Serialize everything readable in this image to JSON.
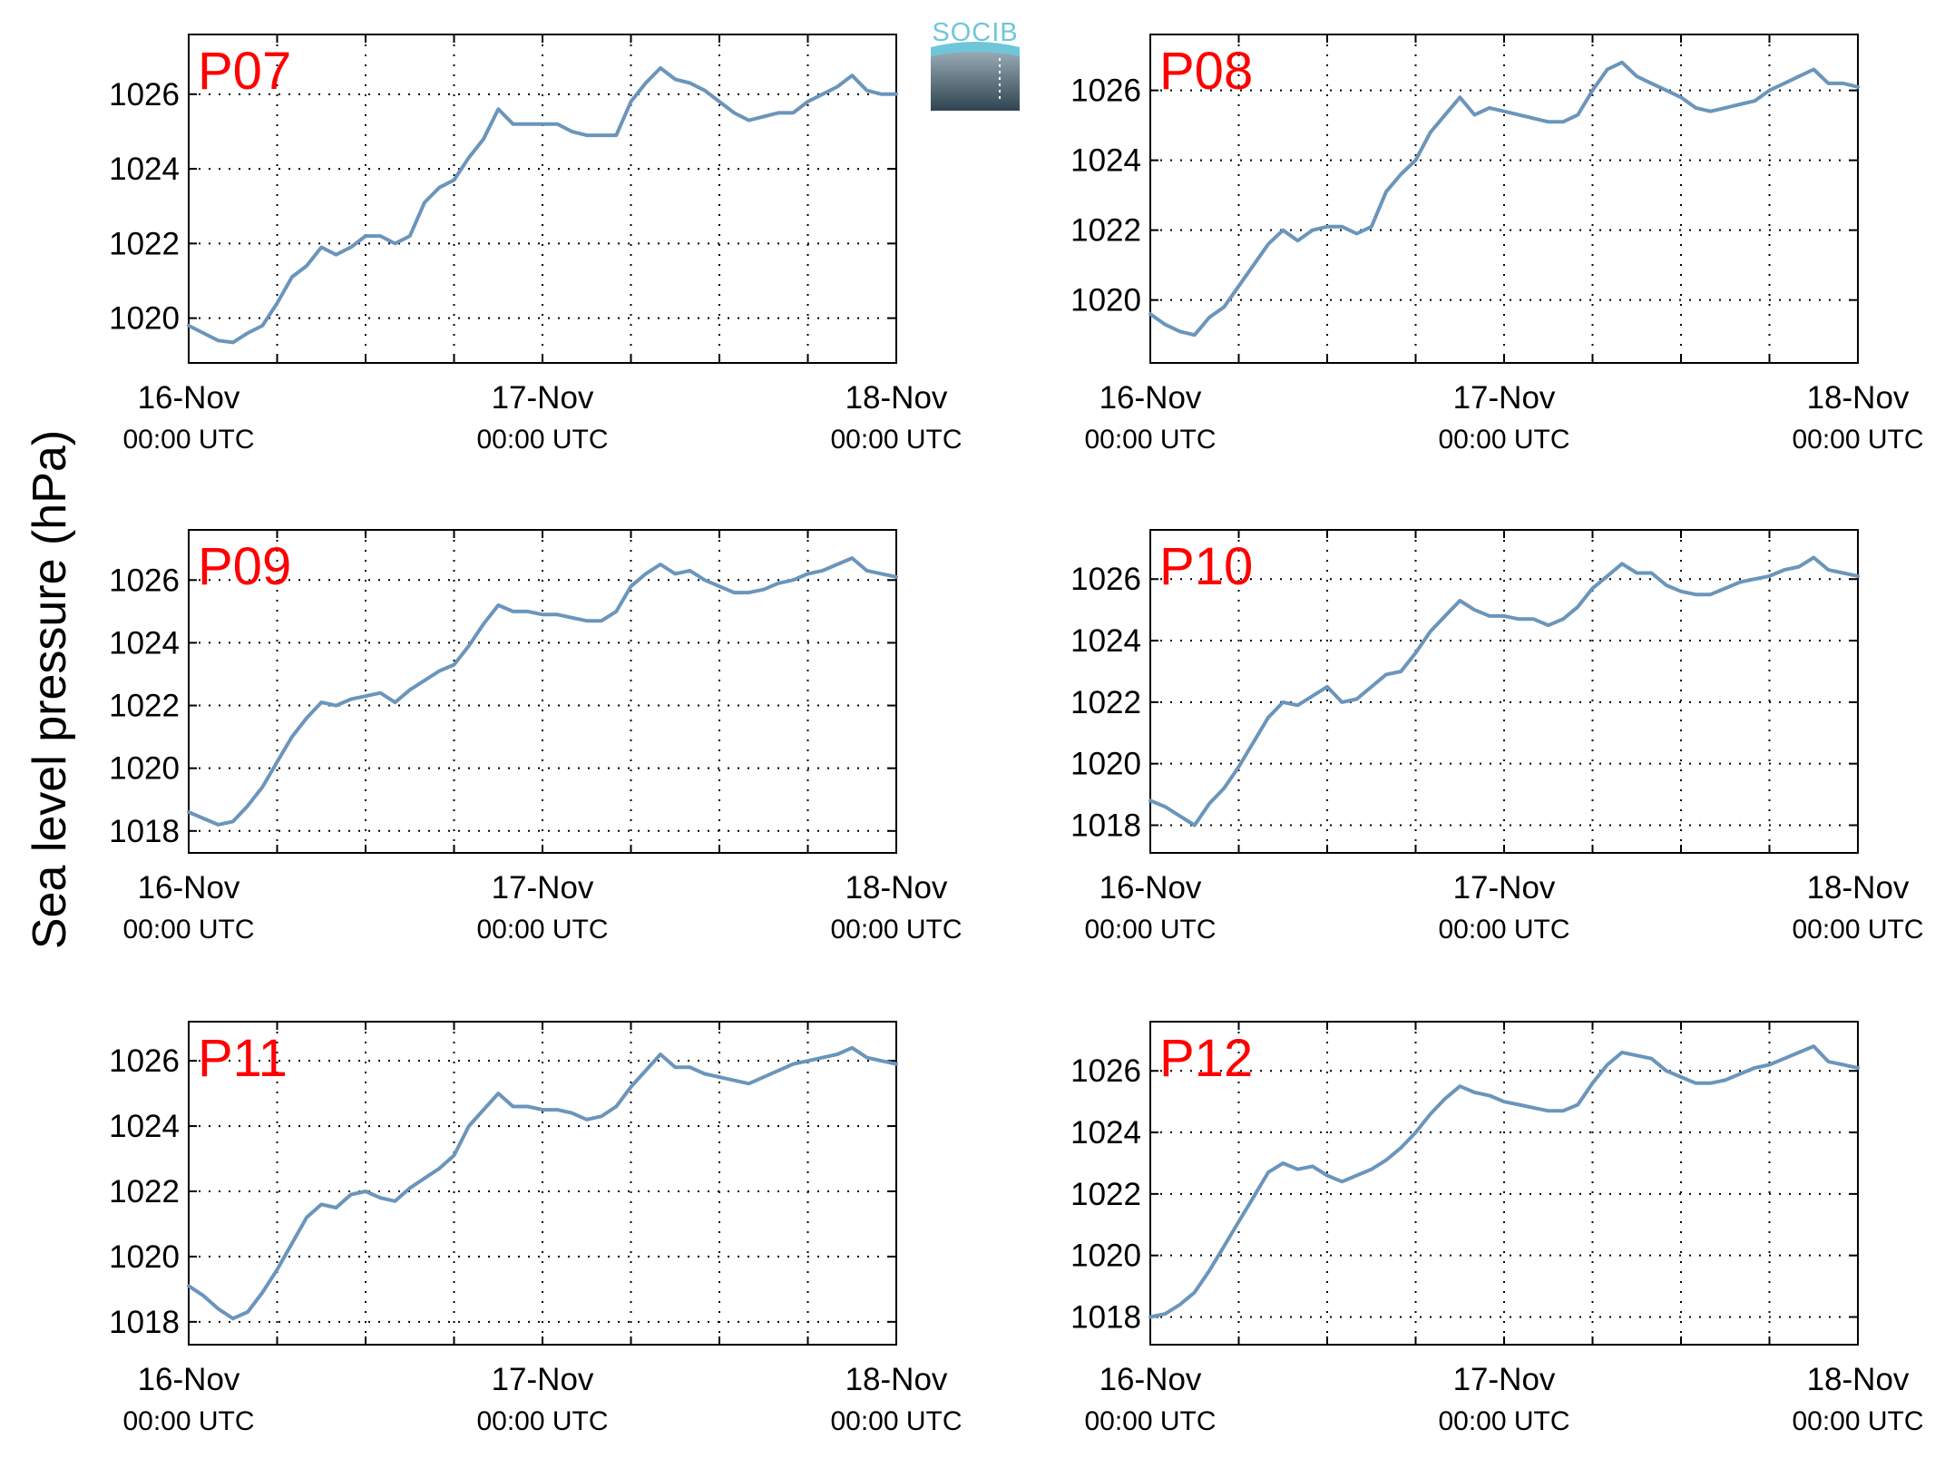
{
  "figure": {
    "ylabel": "Sea level pressure (hPa)",
    "logo_text": "SOCIB",
    "colors": {
      "line": "#6b95bb",
      "title": "#ff0000",
      "axis": "#000000",
      "grid": "#000000",
      "logo_top": "#6fc6d9",
      "logo_bottom": "#2f4450"
    }
  },
  "chart_data": [
    {
      "type": "line",
      "title": "P07",
      "x_ticks": [
        {
          "date": "16-Nov",
          "time": "00:00 UTC"
        },
        {
          "date": "17-Nov",
          "time": "00:00 UTC"
        },
        {
          "date": "18-Nov",
          "time": "00:00 UTC"
        }
      ],
      "x_unit": "hours since 16-Nov 00:00 UTC",
      "xlim": [
        0,
        48
      ],
      "ylim": [
        1018.8,
        1027.6
      ],
      "yticks": [
        1020,
        1022,
        1024,
        1026
      ],
      "grid": true,
      "series": [
        {
          "x": [
            0,
            1,
            2,
            3,
            4,
            5,
            6,
            7,
            8,
            9,
            10,
            11,
            12,
            13,
            14,
            15,
            16,
            17,
            18,
            19,
            20,
            21,
            22,
            23,
            24,
            25,
            26,
            27,
            28,
            29,
            30,
            31,
            32,
            33,
            34,
            35,
            36,
            37,
            38,
            39,
            40,
            41,
            42,
            43,
            44,
            45,
            46,
            47,
            48
          ],
          "y": [
            1019.8,
            1019.6,
            1019.4,
            1019.35,
            1019.6,
            1019.8,
            1020.4,
            1021.1,
            1021.4,
            1021.9,
            1021.7,
            1021.9,
            1022.2,
            1022.2,
            1022.0,
            1022.2,
            1023.1,
            1023.5,
            1023.7,
            1024.3,
            1024.8,
            1025.6,
            1025.2,
            1025.2,
            1025.2,
            1025.2,
            1025.0,
            1024.9,
            1024.9,
            1024.9,
            1025.8,
            1026.3,
            1026.7,
            1026.4,
            1026.3,
            1026.1,
            1025.8,
            1025.5,
            1025.3,
            1025.4,
            1025.5,
            1025.5,
            1025.8,
            1026.0,
            1026.2,
            1026.5,
            1026.1,
            1026.0,
            1026.0
          ]
        }
      ]
    },
    {
      "type": "line",
      "title": "P08",
      "x_ticks": [
        {
          "date": "16-Nov",
          "time": "00:00 UTC"
        },
        {
          "date": "17-Nov",
          "time": "00:00 UTC"
        },
        {
          "date": "18-Nov",
          "time": "00:00 UTC"
        }
      ],
      "x_unit": "hours since 16-Nov 00:00 UTC",
      "xlim": [
        0,
        48
      ],
      "ylim": [
        1018.2,
        1027.6
      ],
      "yticks": [
        1020,
        1022,
        1024,
        1026
      ],
      "grid": true,
      "series": [
        {
          "x": [
            0,
            1,
            2,
            3,
            4,
            5,
            6,
            7,
            8,
            9,
            10,
            11,
            12,
            13,
            14,
            15,
            16,
            17,
            18,
            19,
            20,
            21,
            22,
            23,
            24,
            25,
            26,
            27,
            28,
            29,
            30,
            31,
            32,
            33,
            34,
            35,
            36,
            37,
            38,
            39,
            40,
            41,
            42,
            43,
            44,
            45,
            46,
            47,
            48
          ],
          "y": [
            1019.6,
            1019.3,
            1019.1,
            1019.0,
            1019.5,
            1019.8,
            1020.4,
            1021.0,
            1021.6,
            1022.0,
            1021.7,
            1022.0,
            1022.1,
            1022.1,
            1021.9,
            1022.1,
            1023.1,
            1023.6,
            1024.0,
            1024.8,
            1025.3,
            1025.8,
            1025.3,
            1025.5,
            1025.4,
            1025.3,
            1025.2,
            1025.1,
            1025.1,
            1025.3,
            1026.0,
            1026.6,
            1026.8,
            1026.4,
            1026.2,
            1026.0,
            1025.8,
            1025.5,
            1025.4,
            1025.5,
            1025.6,
            1025.7,
            1026.0,
            1026.2,
            1026.4,
            1026.6,
            1026.2,
            1026.2,
            1026.1
          ]
        }
      ]
    },
    {
      "type": "line",
      "title": "P09",
      "x_ticks": [
        {
          "date": "16-Nov",
          "time": "00:00 UTC"
        },
        {
          "date": "17-Nov",
          "time": "00:00 UTC"
        },
        {
          "date": "18-Nov",
          "time": "00:00 UTC"
        }
      ],
      "x_unit": "hours since 16-Nov 00:00 UTC",
      "xlim": [
        0,
        48
      ],
      "ylim": [
        1017.3,
        1027.6
      ],
      "yticks": [
        1018,
        1020,
        1022,
        1024,
        1026
      ],
      "grid": true,
      "series": [
        {
          "x": [
            0,
            1,
            2,
            3,
            4,
            5,
            6,
            7,
            8,
            9,
            10,
            11,
            12,
            13,
            14,
            15,
            16,
            17,
            18,
            19,
            20,
            21,
            22,
            23,
            24,
            25,
            26,
            27,
            28,
            29,
            30,
            31,
            32,
            33,
            34,
            35,
            36,
            37,
            38,
            39,
            40,
            41,
            42,
            43,
            44,
            45,
            46,
            47,
            48
          ],
          "y": [
            1018.6,
            1018.4,
            1018.2,
            1018.3,
            1018.8,
            1019.4,
            1020.2,
            1021.0,
            1021.6,
            1022.1,
            1022.0,
            1022.2,
            1022.3,
            1022.4,
            1022.1,
            1022.5,
            1022.8,
            1023.1,
            1023.3,
            1023.9,
            1024.6,
            1025.2,
            1025.0,
            1025.0,
            1024.9,
            1024.9,
            1024.8,
            1024.7,
            1024.7,
            1025.0,
            1025.8,
            1026.2,
            1026.5,
            1026.2,
            1026.3,
            1026.0,
            1025.8,
            1025.6,
            1025.6,
            1025.7,
            1025.9,
            1026.0,
            1026.2,
            1026.3,
            1026.5,
            1026.7,
            1026.3,
            1026.2,
            1026.1
          ]
        }
      ]
    },
    {
      "type": "line",
      "title": "P10",
      "x_ticks": [
        {
          "date": "16-Nov",
          "time": "00:00 UTC"
        },
        {
          "date": "17-Nov",
          "time": "00:00 UTC"
        },
        {
          "date": "18-Nov",
          "time": "00:00 UTC"
        }
      ],
      "x_unit": "hours since 16-Nov 00:00 UTC",
      "xlim": [
        0,
        48
      ],
      "ylim": [
        1017.1,
        1027.6
      ],
      "yticks": [
        1018,
        1020,
        1022,
        1024,
        1026
      ],
      "grid": true,
      "series": [
        {
          "x": [
            0,
            1,
            2,
            3,
            4,
            5,
            6,
            7,
            8,
            9,
            10,
            11,
            12,
            13,
            14,
            15,
            16,
            17,
            18,
            19,
            20,
            21,
            22,
            23,
            24,
            25,
            26,
            27,
            28,
            29,
            30,
            31,
            32,
            33,
            34,
            35,
            36,
            37,
            38,
            39,
            40,
            41,
            42,
            43,
            44,
            45,
            46,
            47,
            48
          ],
          "y": [
            1018.8,
            1018.6,
            1018.3,
            1018.0,
            1018.7,
            1019.2,
            1019.9,
            1020.7,
            1021.5,
            1022.0,
            1021.9,
            1022.2,
            1022.5,
            1022.0,
            1022.1,
            1022.5,
            1022.9,
            1023.0,
            1023.6,
            1024.3,
            1024.8,
            1025.3,
            1025.0,
            1024.8,
            1024.8,
            1024.7,
            1024.7,
            1024.5,
            1024.7,
            1025.1,
            1025.7,
            1026.1,
            1026.5,
            1026.2,
            1026.2,
            1025.8,
            1025.6,
            1025.5,
            1025.5,
            1025.7,
            1025.9,
            1026.0,
            1026.1,
            1026.3,
            1026.4,
            1026.7,
            1026.3,
            1026.2,
            1026.1
          ]
        }
      ]
    },
    {
      "type": "line",
      "title": "P11",
      "x_ticks": [
        {
          "date": "16-Nov",
          "time": "00:00 UTC"
        },
        {
          "date": "17-Nov",
          "time": "00:00 UTC"
        },
        {
          "date": "18-Nov",
          "time": "00:00 UTC"
        }
      ],
      "x_unit": "hours since 16-Nov 00:00 UTC",
      "xlim": [
        0,
        48
      ],
      "ylim": [
        1017.3,
        1027.2
      ],
      "yticks": [
        1018,
        1020,
        1022,
        1024,
        1026
      ],
      "grid": true,
      "series": [
        {
          "x": [
            0,
            1,
            2,
            3,
            4,
            5,
            6,
            7,
            8,
            9,
            10,
            11,
            12,
            13,
            14,
            15,
            16,
            17,
            18,
            19,
            20,
            21,
            22,
            23,
            24,
            25,
            26,
            27,
            28,
            29,
            30,
            31,
            32,
            33,
            34,
            35,
            36,
            37,
            38,
            39,
            40,
            41,
            42,
            43,
            44,
            45,
            46,
            47,
            48
          ],
          "y": [
            1019.1,
            1018.8,
            1018.4,
            1018.1,
            1018.3,
            1018.9,
            1019.6,
            1020.4,
            1021.2,
            1021.6,
            1021.5,
            1021.9,
            1022.0,
            1021.8,
            1021.7,
            1022.1,
            1022.4,
            1022.7,
            1023.1,
            1024.0,
            1024.5,
            1025.0,
            1024.6,
            1024.6,
            1024.5,
            1024.5,
            1024.4,
            1024.2,
            1024.3,
            1024.6,
            1025.2,
            1025.7,
            1026.2,
            1025.8,
            1025.8,
            1025.6,
            1025.5,
            1025.4,
            1025.3,
            1025.5,
            1025.7,
            1025.9,
            1026.0,
            1026.1,
            1026.2,
            1026.4,
            1026.1,
            1026.0,
            1025.9
          ]
        }
      ]
    },
    {
      "type": "line",
      "title": "P12",
      "x_ticks": [
        {
          "date": "16-Nov",
          "time": "00:00 UTC"
        },
        {
          "date": "17-Nov",
          "time": "00:00 UTC"
        },
        {
          "date": "18-Nov",
          "time": "00:00 UTC"
        }
      ],
      "x_unit": "hours since 16-Nov 00:00 UTC",
      "xlim": [
        0,
        48
      ],
      "ylim": [
        1017.1,
        1027.6
      ],
      "yticks": [
        1018,
        1020,
        1022,
        1024,
        1026
      ],
      "grid": true,
      "series": [
        {
          "x": [
            0,
            1,
            2,
            3,
            4,
            5,
            6,
            7,
            8,
            9,
            10,
            11,
            12,
            13,
            14,
            15,
            16,
            17,
            18,
            19,
            20,
            21,
            22,
            23,
            24,
            25,
            26,
            27,
            28,
            29,
            30,
            31,
            32,
            33,
            34,
            35,
            36,
            37,
            38,
            39,
            40,
            41,
            42,
            43,
            44,
            45,
            46,
            47,
            48
          ],
          "y": [
            1018.0,
            1018.1,
            1018.4,
            1018.8,
            1019.5,
            1020.3,
            1021.1,
            1021.9,
            1022.7,
            1023.0,
            1022.8,
            1022.9,
            1022.6,
            1022.4,
            1022.6,
            1022.8,
            1023.1,
            1023.5,
            1024.0,
            1024.6,
            1025.1,
            1025.5,
            1025.3,
            1025.2,
            1025.0,
            1024.9,
            1024.8,
            1024.7,
            1024.7,
            1024.9,
            1025.6,
            1026.2,
            1026.6,
            1026.5,
            1026.4,
            1026.0,
            1025.8,
            1025.6,
            1025.6,
            1025.7,
            1025.9,
            1026.1,
            1026.2,
            1026.4,
            1026.6,
            1026.8,
            1026.3,
            1026.2,
            1026.1
          ]
        }
      ]
    }
  ]
}
